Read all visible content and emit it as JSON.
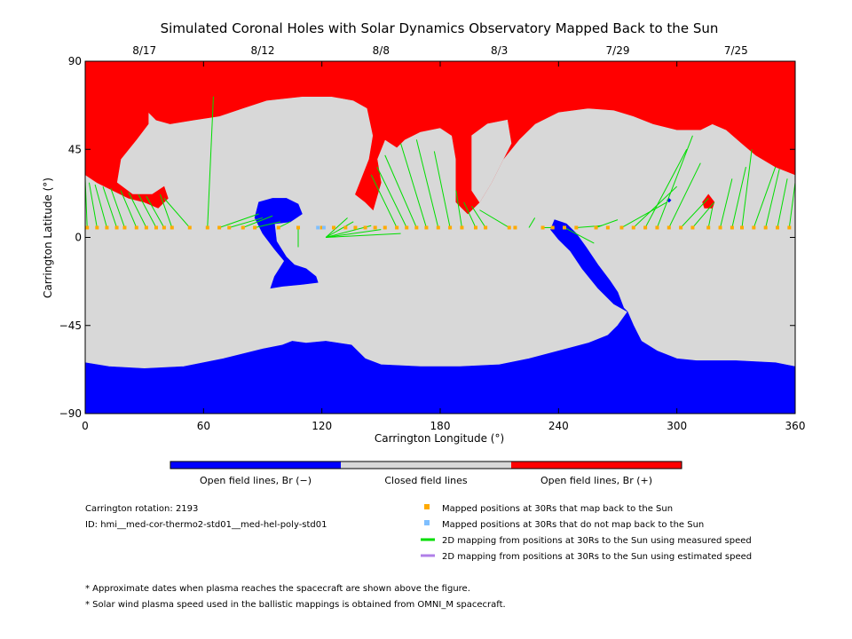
{
  "chart_data": {
    "type": "map",
    "title": "Simulated Coronal Holes with Solar Dynamics Observatory Mapped Back to the Sun",
    "xlabel": "Carrington Longitude (°)",
    "ylabel": "Carrington Latitude (°)",
    "xlim": [
      0,
      360
    ],
    "ylim": [
      -90,
      90
    ],
    "x_ticks": [
      0,
      60,
      120,
      180,
      240,
      300,
      360
    ],
    "y_ticks": [
      90,
      45,
      0,
      -45,
      -90
    ],
    "top_axis_dates": [
      {
        "label": "8/17",
        "lon": 30
      },
      {
        "label": "8/12",
        "lon": 90
      },
      {
        "label": "8/8",
        "lon": 150
      },
      {
        "label": "8/3",
        "lon": 210
      },
      {
        "label": "7/29",
        "lon": 270
      },
      {
        "label": "7/25",
        "lon": 330
      }
    ],
    "colors": {
      "open_negative": "#0000ff",
      "closed": "#d8d8d8",
      "open_positive": "#ff0000",
      "mapped_back": "#ffaa00",
      "not_mapped": "#7fbfff",
      "measured_speed_line": "#00dd00",
      "estimated_speed_line": "#b07fe8"
    },
    "colorbar_labels": [
      "Open field lines, Br (−)",
      "Closed field lines",
      "Open field lines, Br (+)"
    ],
    "regions": {
      "north_positive_hole": [
        [
          0,
          90
        ],
        [
          360,
          90
        ],
        [
          360,
          32
        ],
        [
          350,
          36
        ],
        [
          340,
          42
        ],
        [
          333,
          48
        ],
        [
          325,
          55
        ],
        [
          318,
          58
        ],
        [
          312,
          55
        ],
        [
          300,
          55
        ],
        [
          288,
          58
        ],
        [
          278,
          62
        ],
        [
          268,
          65
        ],
        [
          255,
          66
        ],
        [
          240,
          64
        ],
        [
          228,
          58
        ],
        [
          220,
          50
        ],
        [
          212,
          40
        ],
        [
          206,
          28
        ],
        [
          200,
          18
        ],
        [
          194,
          12
        ],
        [
          188,
          18
        ],
        [
          188,
          40
        ],
        [
          186,
          52
        ],
        [
          180,
          56
        ],
        [
          170,
          54
        ],
        [
          162,
          50
        ],
        [
          158,
          46
        ],
        [
          152,
          50
        ],
        [
          148,
          40
        ],
        [
          150,
          28
        ],
        [
          146,
          14
        ],
        [
          142,
          18
        ],
        [
          137,
          22
        ],
        [
          144,
          40
        ],
        [
          146,
          52
        ],
        [
          143,
          66
        ],
        [
          136,
          70
        ],
        [
          125,
          72
        ],
        [
          110,
          72
        ],
        [
          92,
          70
        ],
        [
          80,
          66
        ],
        [
          68,
          62
        ],
        [
          55,
          60
        ],
        [
          43,
          58
        ],
        [
          36,
          60
        ],
        [
          32,
          64
        ],
        [
          32,
          58
        ],
        [
          26,
          50
        ],
        [
          18,
          40
        ],
        [
          16,
          28
        ],
        [
          24,
          22
        ],
        [
          34,
          22
        ],
        [
          40,
          26
        ],
        [
          42,
          20
        ],
        [
          37,
          15
        ],
        [
          30,
          18
        ],
        [
          22,
          20
        ],
        [
          14,
          24
        ],
        [
          6,
          28
        ],
        [
          0,
          32
        ]
      ],
      "north_inner_closed": [
        [
          196,
          52
        ],
        [
          204,
          58
        ],
        [
          214,
          60
        ],
        [
          216,
          48
        ],
        [
          212,
          40
        ],
        [
          206,
          28
        ],
        [
          200,
          18
        ],
        [
          196,
          24
        ]
      ],
      "positive_spot": [
        [
          313,
          18
        ],
        [
          316,
          22
        ],
        [
          319,
          18
        ],
        [
          318,
          15
        ],
        [
          314,
          15
        ]
      ],
      "south_negative_hole": [
        [
          0,
          -64
        ],
        [
          12,
          -66
        ],
        [
          30,
          -67
        ],
        [
          50,
          -66
        ],
        [
          70,
          -62
        ],
        [
          90,
          -57
        ],
        [
          100,
          -55
        ],
        [
          105,
          -53
        ],
        [
          112,
          -54
        ],
        [
          122,
          -53
        ],
        [
          135,
          -55
        ],
        [
          142,
          -62
        ],
        [
          150,
          -65
        ],
        [
          170,
          -66
        ],
        [
          190,
          -66
        ],
        [
          210,
          -65
        ],
        [
          225,
          -62
        ],
        [
          240,
          -58
        ],
        [
          255,
          -54
        ],
        [
          265,
          -50
        ],
        [
          270,
          -45
        ],
        [
          275,
          -38
        ],
        [
          278,
          -45
        ],
        [
          282,
          -53
        ],
        [
          290,
          -58
        ],
        [
          300,
          -62
        ],
        [
          310,
          -63
        ],
        [
          330,
          -63
        ],
        [
          350,
          -64
        ],
        [
          360,
          -66
        ],
        [
          360,
          -90
        ],
        [
          0,
          -90
        ]
      ],
      "negative_hole_center_left": [
        [
          88,
          18
        ],
        [
          95,
          20
        ],
        [
          102,
          20
        ],
        [
          108,
          17
        ],
        [
          110,
          12
        ],
        [
          104,
          8
        ],
        [
          96,
          7
        ],
        [
          97,
          -2
        ],
        [
          102,
          -10
        ],
        [
          106,
          -14
        ],
        [
          112,
          -16
        ],
        [
          117,
          -20
        ],
        [
          118,
          -23
        ],
        [
          110,
          -24
        ],
        [
          100,
          -25
        ],
        [
          94,
          -26
        ],
        [
          96,
          -20
        ],
        [
          101,
          -12
        ],
        [
          96,
          -6
        ],
        [
          90,
          2
        ],
        [
          86,
          10
        ]
      ],
      "negative_stream_center": [
        [
          238,
          9
        ],
        [
          244,
          7
        ],
        [
          249,
          2
        ],
        [
          254,
          -5
        ],
        [
          260,
          -14
        ],
        [
          266,
          -22
        ],
        [
          270,
          -28
        ],
        [
          273,
          -36
        ],
        [
          275,
          -38
        ],
        [
          268,
          -34
        ],
        [
          260,
          -26
        ],
        [
          252,
          -16
        ],
        [
          246,
          -7
        ],
        [
          240,
          -1
        ],
        [
          236,
          4
        ]
      ],
      "negative_spot": [
        [
          295,
          19
        ],
        [
          296,
          20
        ],
        [
          297,
          19
        ],
        [
          296,
          18
        ]
      ]
    },
    "mapped_positions_lat": 5,
    "mapped_back_lons": [
      1,
      6,
      11,
      16,
      20,
      26,
      31,
      36,
      40,
      44,
      53,
      62,
      68,
      73,
      80,
      86,
      98,
      108,
      120,
      126,
      132,
      137,
      142,
      147,
      152,
      158,
      163,
      168,
      173,
      179,
      185,
      191,
      198,
      203,
      215,
      218,
      232,
      237,
      243,
      249,
      259,
      265,
      272,
      278,
      284,
      290,
      296,
      302,
      308,
      316,
      322,
      328,
      333,
      339,
      345,
      351,
      357
    ],
    "not_mapped_lons": [
      118,
      121
    ],
    "mapping_lines": [
      [
        1,
        5,
        0,
        30
      ],
      [
        6,
        5,
        2,
        28
      ],
      [
        11,
        5,
        5,
        27
      ],
      [
        16,
        5,
        9,
        26
      ],
      [
        20,
        5,
        13,
        25
      ],
      [
        26,
        5,
        18,
        24
      ],
      [
        31,
        5,
        22,
        23
      ],
      [
        36,
        5,
        27,
        22
      ],
      [
        40,
        5,
        31,
        21
      ],
      [
        44,
        5,
        38,
        22
      ],
      [
        53,
        5,
        40,
        20
      ],
      [
        62,
        5,
        65,
        72
      ],
      [
        68,
        5,
        88,
        12
      ],
      [
        73,
        5,
        90,
        10
      ],
      [
        80,
        5,
        95,
        11
      ],
      [
        86,
        5,
        99,
        8
      ],
      [
        98,
        5,
        104,
        8
      ],
      [
        108,
        5,
        108,
        -5
      ],
      [
        122,
        0,
        133,
        10
      ],
      [
        122,
        0,
        136,
        8
      ],
      [
        122,
        0,
        145,
        6
      ],
      [
        122,
        0,
        150,
        4
      ],
      [
        122,
        0,
        160,
        2
      ],
      [
        158,
        5,
        145,
        32
      ],
      [
        163,
        5,
        148,
        36
      ],
      [
        168,
        5,
        152,
        42
      ],
      [
        173,
        5,
        160,
        48
      ],
      [
        179,
        5,
        168,
        50
      ],
      [
        185,
        5,
        177,
        44
      ],
      [
        191,
        5,
        188,
        24
      ],
      [
        198,
        5,
        192,
        18
      ],
      [
        203,
        5,
        196,
        16
      ],
      [
        215,
        5,
        200,
        14
      ],
      [
        225,
        5,
        228,
        10
      ],
      [
        232,
        5,
        238,
        5
      ],
      [
        243,
        5,
        258,
        -3
      ],
      [
        249,
        5,
        262,
        6
      ],
      [
        259,
        5,
        270,
        9
      ],
      [
        272,
        5,
        295,
        18
      ],
      [
        278,
        5,
        300,
        26
      ],
      [
        284,
        5,
        305,
        45
      ],
      [
        290,
        5,
        308,
        52
      ],
      [
        296,
        5,
        312,
        38
      ],
      [
        302,
        5,
        316,
        20
      ],
      [
        308,
        5,
        319,
        18
      ],
      [
        316,
        5,
        318,
        15
      ],
      [
        322,
        5,
        328,
        30
      ],
      [
        328,
        5,
        335,
        36
      ],
      [
        333,
        5,
        338,
        45
      ],
      [
        339,
        5,
        350,
        36
      ],
      [
        345,
        5,
        352,
        35
      ],
      [
        351,
        5,
        356,
        30
      ],
      [
        357,
        5,
        360,
        28
      ]
    ],
    "carrington_rotation": "Carrington rotation: 2193",
    "model_id": "ID: hmi__med-cor-thermo2-std01__med-hel-poly-std01",
    "legend": [
      {
        "label": "Mapped positions at 30Rs that map back to the Sun",
        "kind": "square",
        "color": "#ffaa00"
      },
      {
        "label": "Mapped positions at 30Rs that do not map back to the Sun",
        "kind": "square",
        "color": "#7fbfff"
      },
      {
        "label": "2D mapping from positions at 30Rs to the Sun using measured speed",
        "kind": "line",
        "color": "#00dd00"
      },
      {
        "label": "2D mapping from positions at 30Rs to the Sun using estimated speed",
        "kind": "line",
        "color": "#b07fe8"
      }
    ],
    "footnotes": [
      "* Approximate dates when plasma reaches the spacecraft are shown above the figure.",
      "* Solar wind plasma speed used in the ballistic mappings is obtained from OMNI_M spacecraft."
    ]
  }
}
